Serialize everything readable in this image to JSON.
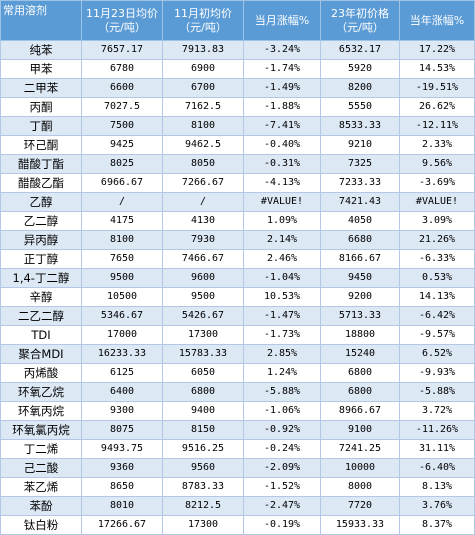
{
  "header": {
    "product": "常用溶剂",
    "nov23_avg": "11月23日均价（元/吨）",
    "nov_early_avg": "11月初均价（元/吨）",
    "month_change": "当月涨幅%",
    "year_start_price": "23年初价格（元/吨）",
    "year_change": "当年涨幅%"
  },
  "rows": [
    {
      "name": "纯苯",
      "price": "7657.17",
      "nov_early": "7913.83",
      "month_change": "-3.24%",
      "month_dir": "neg",
      "year_start": "6532.17",
      "year_change": "17.22%",
      "year_dir": "pos"
    },
    {
      "name": "甲苯",
      "price": "6780",
      "nov_early": "6900",
      "month_change": "-1.74%",
      "month_dir": "neg",
      "year_start": "5920",
      "year_change": "14.53%",
      "year_dir": "pos"
    },
    {
      "name": "二甲苯",
      "price": "6600",
      "nov_early": "6700",
      "month_change": "-1.49%",
      "month_dir": "neg",
      "year_start": "8200",
      "year_change": "-19.51%",
      "year_dir": "neg"
    },
    {
      "name": "丙酮",
      "price": "7027.5",
      "nov_early": "7162.5",
      "month_change": "-1.88%",
      "month_dir": "neg",
      "year_start": "5550",
      "year_change": "26.62%",
      "year_dir": "pos"
    },
    {
      "name": "丁酮",
      "price": "7500",
      "nov_early": "8100",
      "month_change": "-7.41%",
      "month_dir": "neg",
      "year_start": "8533.33",
      "year_change": "-12.11%",
      "year_dir": "neg"
    },
    {
      "name": "环己酮",
      "price": "9425",
      "nov_early": "9462.5",
      "month_change": "-0.40%",
      "month_dir": "neg",
      "year_start": "9210",
      "year_change": "2.33%",
      "year_dir": "pos"
    },
    {
      "name": "醋酸丁酯",
      "price": "8025",
      "nov_early": "8050",
      "month_change": "-0.31%",
      "month_dir": "neg",
      "year_start": "7325",
      "year_change": "9.56%",
      "year_dir": "pos"
    },
    {
      "name": "醋酸乙酯",
      "price": "6966.67",
      "nov_early": "7266.67",
      "month_change": "-4.13%",
      "month_dir": "neg",
      "year_start": "7233.33",
      "year_change": "-3.69%",
      "year_dir": "neg"
    },
    {
      "name": "乙醇",
      "price": "/",
      "nov_early": "/",
      "month_change": "#VALUE!",
      "month_dir": "none",
      "year_start": "7421.43",
      "year_change": "#VALUE!",
      "year_dir": "none"
    },
    {
      "name": "乙二醇",
      "price": "4175",
      "nov_early": "4130",
      "month_change": "1.09%",
      "month_dir": "pos",
      "year_start": "4050",
      "year_change": "3.09%",
      "year_dir": "pos"
    },
    {
      "name": "异丙醇",
      "price": "8100",
      "nov_early": "7930",
      "month_change": "2.14%",
      "month_dir": "pos",
      "year_start": "6680",
      "year_change": "21.26%",
      "year_dir": "pos"
    },
    {
      "name": "正丁醇",
      "price": "7650",
      "nov_early": "7466.67",
      "month_change": "2.46%",
      "month_dir": "pos",
      "year_start": "8166.67",
      "year_change": "-6.33%",
      "year_dir": "neg"
    },
    {
      "name": "1,4-丁二醇",
      "price": "9500",
      "nov_early": "9600",
      "month_change": "-1.04%",
      "month_dir": "neg",
      "year_start": "9450",
      "year_change": "0.53%",
      "year_dir": "pos"
    },
    {
      "name": "辛醇",
      "price": "10500",
      "nov_early": "9500",
      "month_change": "10.53%",
      "month_dir": "pos",
      "year_start": "9200",
      "year_change": "14.13%",
      "year_dir": "pos"
    },
    {
      "name": "二乙二醇",
      "price": "5346.67",
      "nov_early": "5426.67",
      "month_change": "-1.47%",
      "month_dir": "neg",
      "year_start": "5713.33",
      "year_change": "-6.42%",
      "year_dir": "neg"
    },
    {
      "name": "TDI",
      "price": "17000",
      "nov_early": "17300",
      "month_change": "-1.73%",
      "month_dir": "neg",
      "year_start": "18800",
      "year_change": "-9.57%",
      "year_dir": "neg"
    },
    {
      "name": "聚合MDI",
      "price": "16233.33",
      "nov_early": "15783.33",
      "month_change": "2.85%",
      "month_dir": "pos",
      "year_start": "15240",
      "year_change": "6.52%",
      "year_dir": "pos"
    },
    {
      "name": "丙烯酸",
      "price": "6125",
      "nov_early": "6050",
      "month_change": "1.24%",
      "month_dir": "pos",
      "year_start": "6800",
      "year_change": "-9.93%",
      "year_dir": "neg"
    },
    {
      "name": "环氧乙烷",
      "price": "6400",
      "nov_early": "6800",
      "month_change": "-5.88%",
      "month_dir": "neg",
      "year_start": "6800",
      "year_change": "-5.88%",
      "year_dir": "neg"
    },
    {
      "name": "环氧丙烷",
      "price": "9300",
      "nov_early": "9400",
      "month_change": "-1.06%",
      "month_dir": "neg",
      "year_start": "8966.67",
      "year_change": "3.72%",
      "year_dir": "pos"
    },
    {
      "name": "环氧氯丙烷",
      "price": "8075",
      "nov_early": "8150",
      "month_change": "-0.92%",
      "month_dir": "neg",
      "year_start": "9100",
      "year_change": "-11.26%",
      "year_dir": "neg"
    },
    {
      "name": "丁二烯",
      "price": "9493.75",
      "nov_early": "9516.25",
      "month_change": "-0.24%",
      "month_dir": "neg",
      "year_start": "7241.25",
      "year_change": "31.11%",
      "year_dir": "pos"
    },
    {
      "name": "己二酸",
      "price": "9360",
      "nov_early": "9560",
      "month_change": "-2.09%",
      "month_dir": "neg",
      "year_start": "10000",
      "year_change": "-6.40%",
      "year_dir": "neg"
    },
    {
      "name": "苯乙烯",
      "price": "8650",
      "nov_early": "8783.33",
      "month_change": "-1.52%",
      "month_dir": "neg",
      "year_start": "8000",
      "year_change": "8.13%",
      "year_dir": "pos"
    },
    {
      "name": "苯酚",
      "price": "8010",
      "nov_early": "8212.5",
      "month_change": "-2.47%",
      "month_dir": "neg",
      "year_start": "7720",
      "year_change": "3.76%",
      "year_dir": "pos"
    },
    {
      "name": "钛白粉",
      "price": "17266.67",
      "nov_early": "17300",
      "month_change": "-0.19%",
      "month_dir": "neg",
      "year_start": "15933.33",
      "year_change": "8.37%",
      "year_dir": "pos"
    }
  ],
  "colors": {
    "header_bg": "#5b9bd5",
    "stripe_bg": "#dde8f5",
    "rise_text": "#e0001b",
    "fall_text": "#2e7d32"
  }
}
